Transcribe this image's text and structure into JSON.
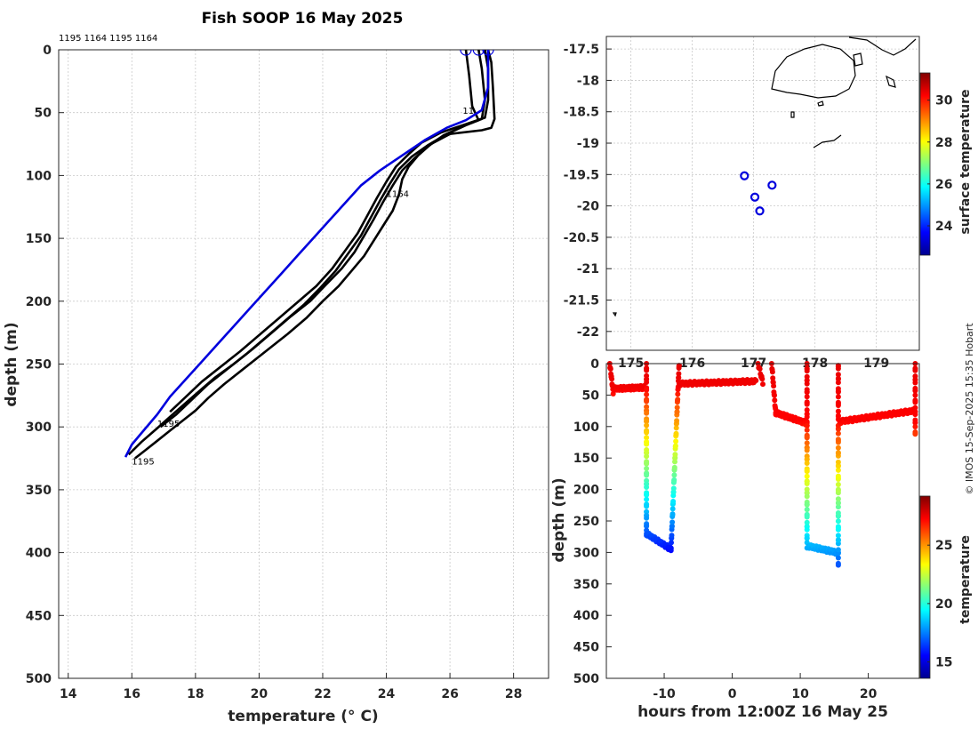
{
  "chart_data": [
    {
      "type": "line",
      "name": "profile-panel",
      "title": "Fish SOOP 16 May 2025",
      "xlabel": "temperature (° C)",
      "ylabel": "depth (m)",
      "xlim": [
        13.7,
        29.1
      ],
      "ylim": [
        500,
        0
      ],
      "xticks": [
        14,
        16,
        18,
        20,
        22,
        24,
        26,
        28
      ],
      "yticks": [
        0,
        50,
        100,
        150,
        200,
        250,
        300,
        350,
        400,
        450,
        500
      ],
      "top_labels": "1195 1164 1195 1164",
      "annotations": [
        {
          "text": "1164",
          "x": 24.0,
          "y": 117
        },
        {
          "text": "1195",
          "x": 16.8,
          "y": 300
        },
        {
          "text": "1195",
          "x": 16.0,
          "y": 330
        },
        {
          "text": "11",
          "x": 26.4,
          "y": 51
        }
      ],
      "series": [
        {
          "name": "profile-1",
          "color": "#000000",
          "x": [
            27.2,
            27.3,
            27.35,
            27.4,
            27.3,
            27.0,
            26.0,
            25.4,
            25.0,
            24.7,
            24.5,
            24.4,
            24.2,
            23.9,
            23.6,
            23.3,
            22.9,
            22.5,
            22.0,
            21.5,
            20.9,
            20.2,
            19.5,
            18.9,
            18.4,
            18.0,
            17.6,
            17.2,
            16.8,
            16.4,
            16.1
          ],
          "y": [
            0,
            10,
            30,
            55,
            62,
            64,
            67,
            75,
            84,
            93,
            103,
            115,
            128,
            140,
            152,
            164,
            176,
            188,
            200,
            213,
            226,
            240,
            254,
            266,
            277,
            287,
            295,
            303,
            311,
            319,
            325
          ]
        },
        {
          "name": "profile-2",
          "color": "#000000",
          "x": [
            26.9,
            27.0,
            27.1,
            27.0,
            26.5,
            25.8,
            25.3,
            24.9,
            24.5,
            24.2,
            23.9,
            23.6,
            23.3,
            23.0,
            22.6,
            22.1,
            21.6,
            21.0,
            20.4,
            19.8,
            19.2,
            18.6,
            18.1,
            17.6,
            17.2,
            16.8,
            16.3,
            15.9
          ],
          "y": [
            0,
            15,
            40,
            55,
            60,
            68,
            77,
            86,
            96,
            108,
            121,
            135,
            148,
            161,
            174,
            187,
            200,
            212,
            225,
            238,
            250,
            261,
            272,
            283,
            292,
            301,
            312,
            322
          ]
        },
        {
          "name": "profile-3",
          "color": "#000000",
          "x": [
            26.5,
            26.6,
            26.7,
            26.9,
            26.5,
            25.9,
            25.3,
            24.8,
            24.4,
            24.1,
            23.8,
            23.5,
            23.2,
            22.8,
            22.4,
            21.9,
            21.4,
            20.8,
            20.2,
            19.6,
            19.0,
            18.4,
            17.9,
            17.4,
            16.9
          ],
          "y": [
            0,
            20,
            45,
            56,
            60,
            67,
            76,
            85,
            95,
            107,
            120,
            134,
            148,
            162,
            176,
            190,
            203,
            216,
            229,
            242,
            254,
            266,
            278,
            290,
            300
          ]
        },
        {
          "name": "profile-4",
          "color": "#000000",
          "x": [
            27.1,
            27.2,
            27.2,
            27.1,
            26.4,
            25.7,
            25.1,
            24.7,
            24.3,
            24.0,
            23.7,
            23.4,
            23.1,
            22.7,
            22.3,
            21.8,
            21.2,
            20.6,
            20.0,
            19.4,
            18.8,
            18.2,
            17.7,
            17.2
          ],
          "y": [
            0,
            15,
            40,
            54,
            60,
            66,
            74,
            83,
            93,
            105,
            118,
            132,
            146,
            160,
            174,
            188,
            201,
            214,
            227,
            240,
            252,
            264,
            276,
            288
          ]
        },
        {
          "name": "model-profile",
          "color": "#0000dd",
          "x": [
            27.2,
            27.2,
            27.0,
            26.5,
            25.9,
            25.2,
            24.5,
            23.8,
            23.2,
            22.7,
            22.2,
            21.7,
            21.2,
            20.7,
            20.2,
            19.7,
            19.2,
            18.7,
            18.2,
            17.7,
            17.2,
            16.8,
            16.4,
            16.0,
            15.8
          ],
          "y": [
            0,
            30,
            48,
            56,
            62,
            72,
            84,
            96,
            108,
            122,
            136,
            150,
            164,
            178,
            192,
            206,
            220,
            234,
            248,
            262,
            276,
            290,
            302,
            314,
            324
          ]
        }
      ],
      "surface_markers": [
        26.5,
        26.9,
        27.2
      ]
    },
    {
      "type": "scatter",
      "name": "map-panel",
      "xticklabels": [
        "175",
        "176",
        "177",
        "178",
        "179"
      ],
      "xticks": [
        175,
        176,
        177,
        178,
        179
      ],
      "xlim": [
        174.6,
        179.7
      ],
      "yticks": [
        -17.5,
        -18,
        -18.5,
        -19,
        -19.5,
        -20,
        -20.5,
        -21,
        -21.5,
        -22
      ],
      "ylim": [
        -22.3,
        -17.3
      ],
      "points": [
        {
          "lon": 176.85,
          "lat": -19.52
        },
        {
          "lon": 177.02,
          "lat": -19.86
        },
        {
          "lon": 177.1,
          "lat": -20.08
        },
        {
          "lon": 177.3,
          "lat": -19.67
        }
      ],
      "colorbar": {
        "label": "surface temperature",
        "ticks": [
          24,
          26,
          28,
          30
        ],
        "range": [
          22.6,
          31.3
        ]
      }
    },
    {
      "type": "scatter",
      "name": "section-panel",
      "xlabel": "hours from 12:00Z 16 May 25",
      "ylabel": "depth (m)",
      "xlim": [
        -18.5,
        27.5
      ],
      "ylim": [
        500,
        0
      ],
      "xticks": [
        -10,
        0,
        10,
        20
      ],
      "yticks": [
        0,
        50,
        100,
        150,
        200,
        250,
        300,
        350,
        400,
        450,
        500
      ],
      "colorbar": {
        "label": "temperature",
        "ticks": [
          15,
          20,
          25
        ],
        "range": [
          13.6,
          29.2
        ]
      }
    }
  ],
  "copyright": "© IMOS 15-Sep-2025 15:35 Hobart"
}
